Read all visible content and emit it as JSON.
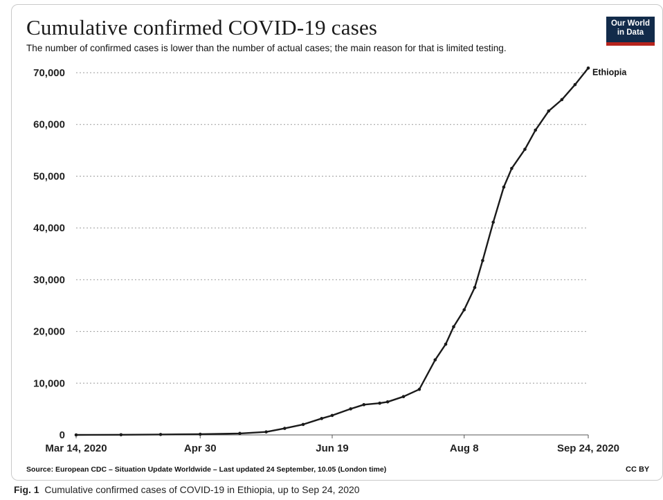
{
  "chart_data": {
    "type": "line",
    "title": "Cumulative confirmed COVID-19 cases",
    "subtitle": "The number of confirmed cases is lower than the number of actual cases; the main reason for that is limited testing.",
    "x_tick_labels": [
      "Mar 14, 2020",
      "Apr 30",
      "Jun 19",
      "Aug 8",
      "Sep 24, 2020"
    ],
    "x_ticks": [
      "2020-03-14",
      "2020-04-30",
      "2020-06-19",
      "2020-08-08",
      "2020-09-24"
    ],
    "y_tick_labels": [
      "0",
      "10,000",
      "20,000",
      "30,000",
      "40,000",
      "50,000",
      "60,000",
      "70,000"
    ],
    "y_ticks": [
      0,
      10000,
      20000,
      30000,
      40000,
      50000,
      60000,
      70000
    ],
    "ylim": [
      0,
      70000
    ],
    "xlim": [
      "2020-03-14",
      "2020-09-24"
    ],
    "grid": "horizontal dotted",
    "series": [
      {
        "name": "Ethiopia",
        "color": "#1a1a1a",
        "points": [
          [
            "2020-03-14",
            0
          ],
          [
            "2020-03-31",
            26
          ],
          [
            "2020-04-15",
            82
          ],
          [
            "2020-04-30",
            131
          ],
          [
            "2020-05-15",
            287
          ],
          [
            "2020-05-25",
            582
          ],
          [
            "2020-06-01",
            1257
          ],
          [
            "2020-06-08",
            2020
          ],
          [
            "2020-06-15",
            3166
          ],
          [
            "2020-06-19",
            3759
          ],
          [
            "2020-06-26",
            5034
          ],
          [
            "2020-07-01",
            5846
          ],
          [
            "2020-07-07",
            6127
          ],
          [
            "2020-07-10",
            6386
          ],
          [
            "2020-07-16",
            7402
          ],
          [
            "2020-07-22",
            8803
          ],
          [
            "2020-07-28",
            14500
          ],
          [
            "2020-08-01",
            17530
          ],
          [
            "2020-08-04",
            20900
          ],
          [
            "2020-08-08",
            24175
          ],
          [
            "2020-08-12",
            28500
          ],
          [
            "2020-08-15",
            33700
          ],
          [
            "2020-08-19",
            41100
          ],
          [
            "2020-08-23",
            47900
          ],
          [
            "2020-08-26",
            51500
          ],
          [
            "2020-08-31",
            55200
          ],
          [
            "2020-09-04",
            58900
          ],
          [
            "2020-09-09",
            62600
          ],
          [
            "2020-09-14",
            64800
          ],
          [
            "2020-09-19",
            67700
          ],
          [
            "2020-09-24",
            70900
          ]
        ]
      }
    ]
  },
  "logo_text": [
    "Our World",
    "in Data"
  ],
  "source_text": "Source: European CDC – Situation Update Worldwide – Last updated 24 September, 10.05 (London time)",
  "license_text": "CC BY",
  "caption": {
    "label": "Fig. 1",
    "text": "Cumulative confirmed cases of COVID-19 in Ethiopia, up to Sep 24, 2020"
  }
}
